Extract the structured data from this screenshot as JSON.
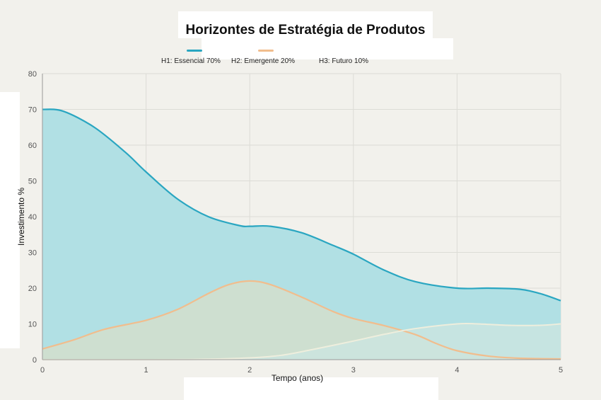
{
  "chart_data": {
    "type": "area",
    "title": "Horizontes de Estratégia de Produtos",
    "xlabel": "Tempo (anos)",
    "ylabel": "Investimento %",
    "xlim": [
      0,
      5
    ],
    "ylim": [
      0,
      80
    ],
    "x_ticks": [
      "0",
      "1",
      "2",
      "3",
      "4",
      "5"
    ],
    "y_ticks": [
      "0",
      "10",
      "20",
      "30",
      "40",
      "50",
      "60",
      "70",
      "80"
    ],
    "grid": true,
    "legend_position": "top",
    "series": [
      {
        "name": "H1: Essencial 70%",
        "color": "#2aa6c1",
        "fill": "#b1e0e4",
        "x": [
          0,
          0.2,
          0.5,
          0.8,
          1.0,
          1.3,
          1.6,
          1.9,
          2.0,
          2.2,
          2.5,
          2.8,
          3.0,
          3.3,
          3.6,
          4.0,
          4.3,
          4.6,
          4.8,
          5.0
        ],
        "values": [
          70,
          69.5,
          65,
          58,
          52.5,
          45,
          40,
          37.5,
          37.3,
          37.3,
          35.5,
          32,
          29.5,
          25,
          21.8,
          20,
          20,
          19.7,
          18.5,
          16.5
        ]
      },
      {
        "name": "H2: Emergente 20%",
        "color": "#f1bd8d",
        "fill": "#d6dfcb",
        "x": [
          0,
          0.3,
          0.6,
          1.0,
          1.3,
          1.6,
          1.8,
          2.0,
          2.2,
          2.5,
          2.8,
          3.0,
          3.3,
          3.6,
          3.8,
          4.0,
          4.3,
          4.6,
          5.0
        ],
        "values": [
          3,
          5.5,
          8.5,
          11,
          14,
          18.5,
          21,
          22,
          21,
          17.5,
          13.5,
          11.5,
          9.5,
          7,
          4.5,
          2.5,
          1,
          0.4,
          0.2
        ]
      },
      {
        "name": "H3: Futuro 10%",
        "color": "#eeeedd",
        "fill": "#cce6e0",
        "x": [
          0,
          1.0,
          1.5,
          2.0,
          2.3,
          2.6,
          3.0,
          3.3,
          3.6,
          4.0,
          4.2,
          4.5,
          4.8,
          5.0
        ],
        "values": [
          0,
          0,
          0.1,
          0.5,
          1.2,
          2.8,
          5.2,
          7.1,
          8.7,
          10,
          10,
          9.6,
          9.6,
          10
        ]
      }
    ]
  }
}
